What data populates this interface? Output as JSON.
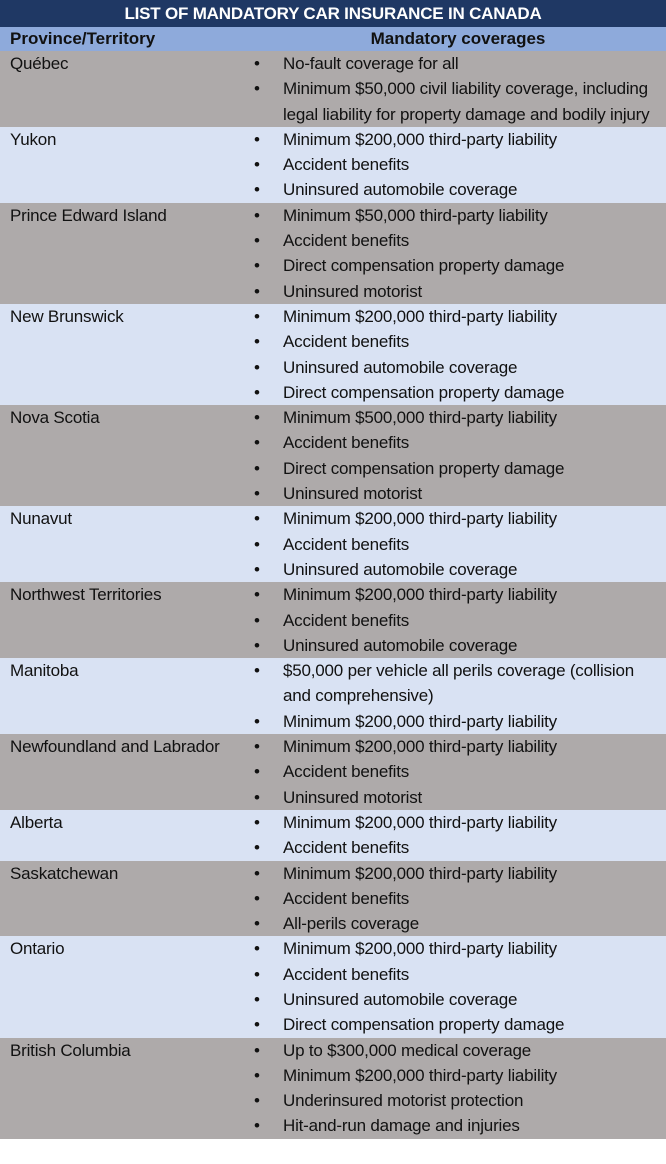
{
  "title": "LIST OF MANDATORY CAR INSURANCE IN CANADA",
  "headers": {
    "province": "Province/Territory",
    "coverages": "Mandatory coverages"
  },
  "colors": {
    "title_bg": "#1f3864",
    "header_bg": "#8eaadb",
    "row_gray": "#aeaaaa",
    "row_light": "#d9e2f3"
  },
  "rows": [
    {
      "province": "Québec",
      "coverages": [
        "No-fault coverage for all",
        "Minimum $50,000 civil liability coverage, including legal liability for property damage and bodily injury"
      ]
    },
    {
      "province": "Yukon",
      "coverages": [
        "Minimum $200,000 third-party liability",
        "Accident benefits",
        "Uninsured automobile coverage"
      ]
    },
    {
      "province": "Prince Edward Island",
      "coverages": [
        "Minimum $50,000 third-party liability",
        "Accident benefits",
        "Direct compensation property damage",
        "Uninsured motorist"
      ]
    },
    {
      "province": "New Brunswick",
      "coverages": [
        "Minimum $200,000 third-party liability",
        "Accident benefits",
        "Uninsured automobile coverage",
        "Direct compensation property damage"
      ]
    },
    {
      "province": "Nova Scotia",
      "coverages": [
        "Minimum $500,000 third-party liability",
        "Accident benefits",
        "Direct compensation property damage",
        "Uninsured motorist"
      ]
    },
    {
      "province": "Nunavut",
      "coverages": [
        "Minimum $200,000 third-party liability",
        "Accident benefits",
        "Uninsured automobile coverage"
      ]
    },
    {
      "province": "Northwest Territories",
      "coverages": [
        "Minimum $200,000 third-party liability",
        "Accident benefits",
        "Uninsured automobile coverage"
      ]
    },
    {
      "province": "Manitoba",
      "coverages": [
        "$50,000 per vehicle all perils coverage (collision and comprehensive)",
        "Minimum $200,000 third-party liability"
      ]
    },
    {
      "province": "Newfoundland and Labrador",
      "coverages": [
        "Minimum $200,000 third-party liability",
        "Accident benefits",
        "Uninsured motorist"
      ]
    },
    {
      "province": "Alberta",
      "coverages": [
        "Minimum $200,000 third-party liability",
        "Accident benefits"
      ]
    },
    {
      "province": "Saskatchewan",
      "coverages": [
        "Minimum $200,000 third-party liability",
        "Accident benefits",
        "All-perils coverage"
      ]
    },
    {
      "province": "Ontario",
      "coverages": [
        "Minimum $200,000 third-party liability",
        "Accident benefits",
        "Uninsured automobile coverage",
        "Direct compensation property damage"
      ]
    },
    {
      "province": "British Columbia",
      "coverages": [
        "Up to $300,000 medical coverage",
        "Minimum $200,000 third-party liability",
        "Underinsured motorist protection",
        "Hit-and-run damage and injuries"
      ]
    }
  ]
}
